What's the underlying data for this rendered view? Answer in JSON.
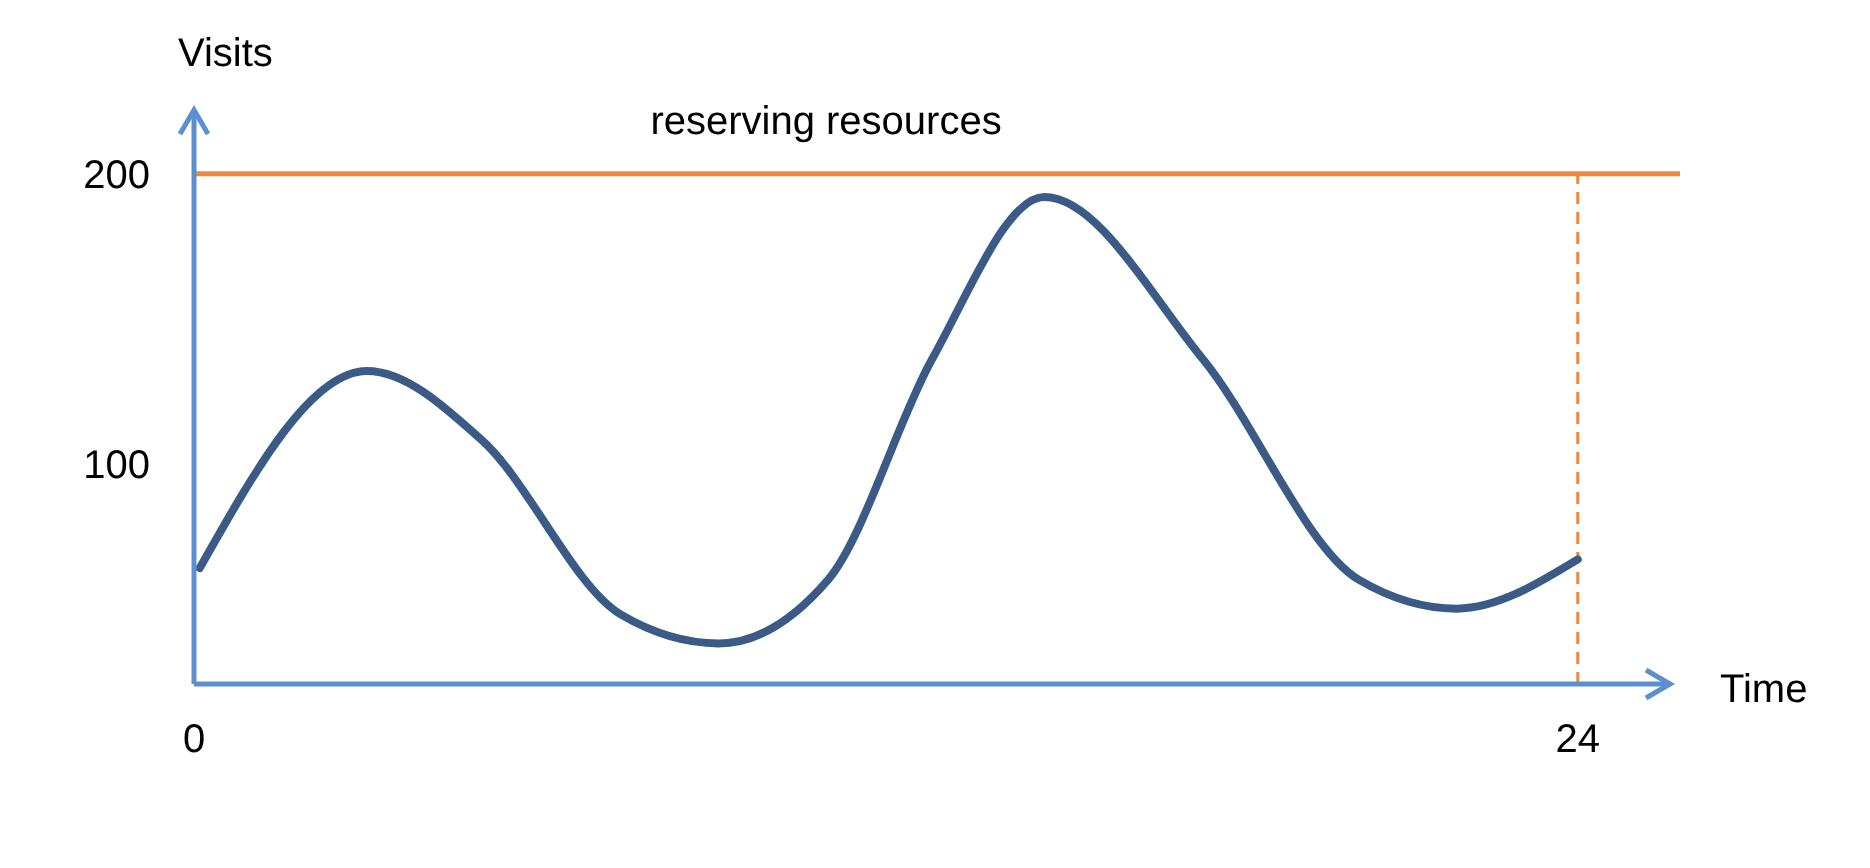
{
  "chart_data": {
    "type": "line",
    "xlabel": "Time",
    "ylabel": "Visits",
    "x": [
      0.1,
      3,
      5,
      7.4,
      9.1,
      11,
      12.8,
      14.75,
      17.5,
      20.2,
      21.9,
      24
    ],
    "series": [
      {
        "color": "#3b5a85",
        "values": [
          64,
          132,
          108,
          48,
          38,
          60,
          136,
          192,
          136,
          60,
          50,
          67
        ]
      }
    ],
    "xlim": [
      0,
      25.6
    ],
    "ylim": [
      24,
      222
    ],
    "xticks": [
      0,
      24
    ],
    "yticks": [
      100,
      200
    ],
    "marker": "none",
    "line_style": "solid",
    "ref_lines": [
      {
        "axis": "y",
        "value": 200,
        "label": "reserving resources",
        "color": "#f0883a",
        "line_style": "solid"
      },
      {
        "axis": "x",
        "value": 24,
        "label": null,
        "color": "#f0883a",
        "line_style": "dashed"
      }
    ]
  }
}
